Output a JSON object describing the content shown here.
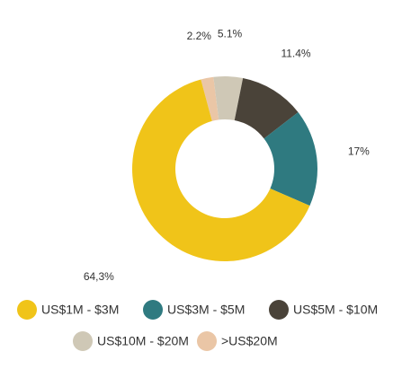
{
  "chart_data": {
    "type": "donut",
    "categories": [
      "US$1M - $3M",
      "US$3M - $5M",
      "US$5M - $10M",
      "US$10M - $20M",
      ">US$20M"
    ],
    "values": [
      64.3,
      17,
      11.4,
      5.1,
      2.2
    ],
    "value_labels": [
      "64,3%",
      "17%",
      "11.4%",
      "5.1%",
      "2.2%"
    ],
    "colors": [
      "#f0c419",
      "#2f7a80",
      "#4a4339",
      "#cfc8b6",
      "#eac6a6"
    ]
  }
}
